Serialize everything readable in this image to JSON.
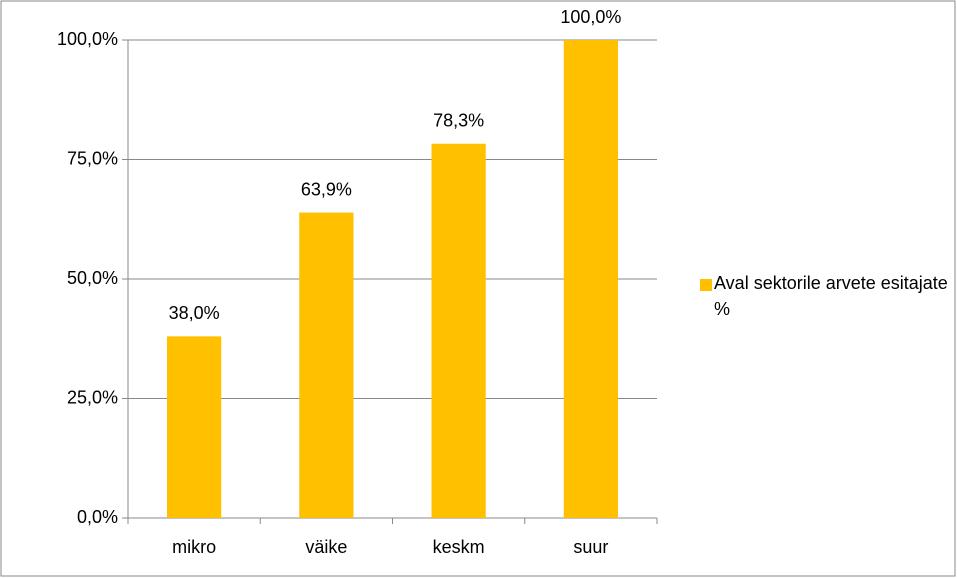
{
  "chart_data": {
    "type": "bar",
    "categories": [
      "mikro",
      "väike",
      "keskm",
      "suur"
    ],
    "series": [
      {
        "name": "Aval sektorile arvete esitajate %",
        "color": "#ffc000",
        "values": [
          38.0,
          63.9,
          78.3,
          100.0
        ],
        "value_labels": [
          "38,0%",
          "63,9%",
          "78,3%",
          "100,0%"
        ]
      }
    ],
    "ylim": [
      0,
      100
    ],
    "yticks": [
      {
        "value": 0,
        "label": "0,0%"
      },
      {
        "value": 25,
        "label": "25,0%"
      },
      {
        "value": 50,
        "label": "50,0%"
      },
      {
        "value": 75,
        "label": "75,0%"
      },
      {
        "value": 100,
        "label": "100,0%"
      }
    ],
    "grid": true,
    "legend": "right"
  }
}
